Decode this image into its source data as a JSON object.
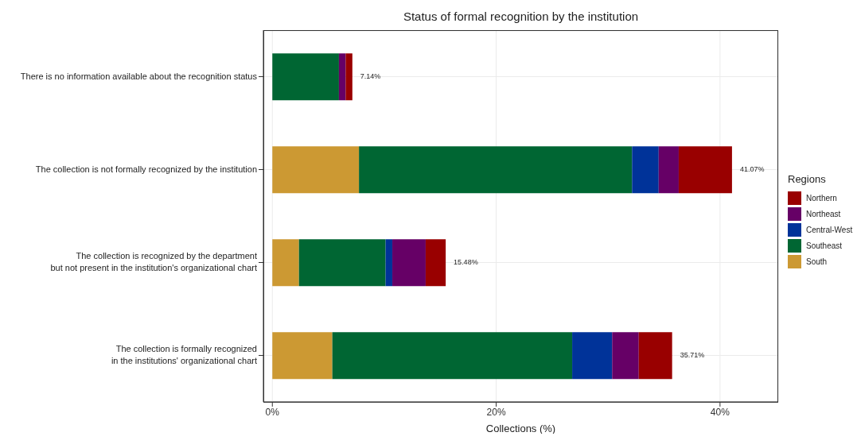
{
  "chart_data": {
    "type": "bar",
    "orientation": "horizontal",
    "stacked": true,
    "title": "Status of formal recognition by the institution",
    "xlabel": "Collections (%)",
    "legend_title": "Regions",
    "legend": "right",
    "categories": [
      "There is no information available about the recognition status",
      "The collection is not formally recognized by the institution",
      "The collection is recognized by the department\nbut not present in the institution's organizational chart",
      "The collection is formally recognized\nin the institutions' organizational chart"
    ],
    "series": [
      {
        "name": "South",
        "color": "#cc9933",
        "values": [
          0,
          7.74,
          2.38,
          5.36
        ]
      },
      {
        "name": "Southeast",
        "color": "#006633",
        "values": [
          5.95,
          24.4,
          7.74,
          21.43
        ]
      },
      {
        "name": "Central-West",
        "color": "#003399",
        "values": [
          0,
          2.38,
          0.6,
          3.57
        ]
      },
      {
        "name": "Northeast",
        "color": "#660066",
        "values": [
          0.6,
          1.79,
          2.98,
          2.38
        ]
      },
      {
        "name": "Northern",
        "color": "#990000",
        "values": [
          0.6,
          4.76,
          1.79,
          2.98
        ]
      }
    ],
    "totals": [
      "7.14%",
      "41.07%",
      "15.48%",
      "35.71%"
    ],
    "xlim": [
      -0.8,
      45.2
    ],
    "xticks": [
      {
        "value": 0,
        "label": "0%"
      },
      {
        "value": 20,
        "label": "20%"
      },
      {
        "value": 40,
        "label": "40%"
      }
    ],
    "grid": true
  }
}
